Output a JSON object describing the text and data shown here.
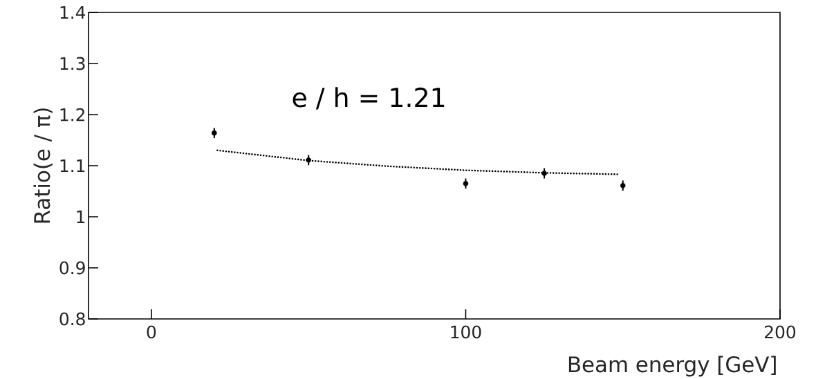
{
  "chart_data": {
    "type": "scatter",
    "xlabel": "Beam energy   [GeV]",
    "ylabel": "Ratio(e / π)",
    "annotations": [
      "e / h = 1.21"
    ],
    "xlim": [
      -20,
      200
    ],
    "ylim": [
      0.8,
      1.4
    ],
    "xticks": [
      0,
      100,
      200
    ],
    "yticks": [
      0.8,
      0.9,
      1,
      1.1,
      1.2,
      1.3,
      1.4
    ],
    "series": [
      {
        "color": "#000000",
        "marker": "circle",
        "x": [
          20,
          50,
          100,
          125,
          150
        ],
        "values": [
          1.164,
          1.111,
          1.065,
          1.085,
          1.061
        ],
        "errors": [
          0.01,
          0.01,
          0.01,
          0.01,
          0.01
        ]
      },
      {
        "type": "line",
        "color": "#000000",
        "marker": "none",
        "line_style": "dotted",
        "x": [
          21,
          50,
          75,
          100,
          125,
          149
        ],
        "values": [
          1.13,
          1.11,
          1.099,
          1.091,
          1.086,
          1.083
        ]
      }
    ]
  }
}
